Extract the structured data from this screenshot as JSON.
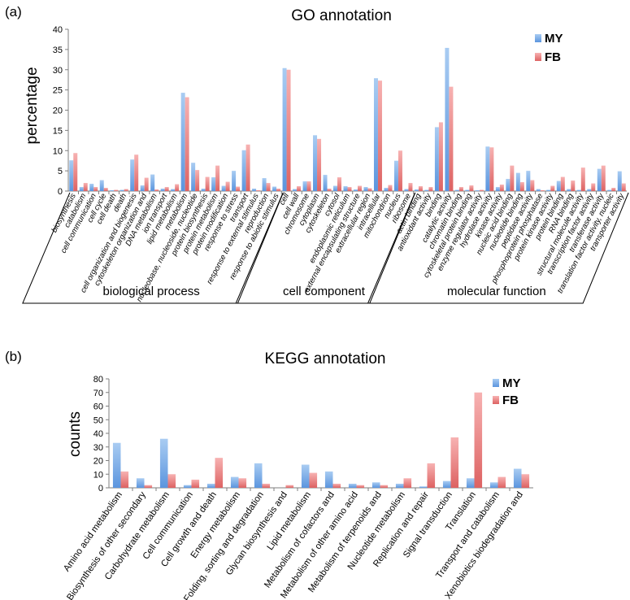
{
  "colors": {
    "MY_top": "#a9ccf2",
    "MY_bottom": "#5b95de",
    "FB_top": "#f7b2b2",
    "FB_bottom": "#dd6262",
    "axis": "#7f7f7f"
  },
  "chart_data": [
    {
      "type": "bar",
      "panel_label": "(a)",
      "title": "GO annotation",
      "xlabel": "",
      "ylabel": "percentage",
      "ylim": [
        0,
        40
      ],
      "yticks": [
        "0",
        "5",
        "10",
        "15",
        "20",
        "25",
        "30",
        "35",
        "40"
      ],
      "grid": false,
      "legend_position": "top-right",
      "categories": [
        "biosynthesis",
        "catabolism",
        "cell communication",
        "cell cycle",
        "cell death",
        "death",
        "cell organization and biogenesis",
        "cytoskeleton organization and",
        "DNA metabolism",
        "ion transport",
        "lipid metabolism",
        "metabolism",
        "nucleobase, nucleoside, nucleotide",
        "protein biosynthesis",
        "protein metabolism",
        "protein modification",
        "response to stress",
        "transport",
        "response to external stimulus",
        "reproduction",
        "response to abiotic stimulus",
        "cell",
        "cell wall",
        "chromosome",
        "cytoplasm",
        "cytoskeleton",
        "cytosol",
        "endoplasmic reticulum",
        "external encapsulating structure",
        "extracellular region",
        "intracellular",
        "mitochondrion",
        "nucleus",
        "ribosome",
        "actin binding",
        "antioxidant activity",
        "binding",
        "catalytic activity",
        "chromatin binding",
        "cytoskeletal protein binding",
        "enzyme regulator activity",
        "hydrolase activity",
        "kinase activity",
        "nucleic acid binding",
        "nucleotide binding",
        "peptidase activity",
        "phosphoprotein phosphatase",
        "protein kinase activity",
        "protein binding",
        "RNA binding",
        "structural molecule activity",
        "transcription factor activity",
        "transferase activity",
        "translation factor activity, nucleic",
        "transporter activity"
      ],
      "series": [
        {
          "name": "MY",
          "values": [
            7.6,
            1.0,
            1.8,
            2.7,
            0.2,
            0.3,
            7.8,
            1.4,
            4.1,
            0.6,
            0.5,
            24.3,
            7.0,
            0.6,
            3.4,
            1.3,
            5.0,
            10.1,
            0.6,
            3.2,
            1.1,
            30.4,
            0.5,
            2.4,
            13.8,
            4.0,
            1.3,
            1.2,
            0.4,
            1.0,
            27.9,
            0.8,
            7.5,
            0.5,
            0.4,
            0.3,
            15.8,
            35.4,
            0.3,
            0.3,
            0.2,
            11.0,
            1.0,
            3.0,
            4.5,
            5.0,
            0.5,
            0.3,
            2.5,
            0.5,
            0.3,
            0.5,
            5.5,
            0.3,
            4.9
          ]
        },
        {
          "name": "FB",
          "values": [
            9.4,
            2.0,
            1.0,
            0.8,
            0.3,
            0.5,
            9.0,
            3.3,
            0.4,
            1.0,
            1.7,
            23.2,
            5.2,
            3.5,
            6.3,
            2.3,
            1.1,
            11.5,
            0.2,
            2.0,
            0.6,
            30.0,
            1.2,
            2.4,
            12.9,
            0.6,
            3.4,
            1.0,
            1.3,
            0.7,
            27.3,
            1.5,
            10.0,
            2.0,
            1.2,
            1.0,
            17.0,
            25.8,
            1.0,
            1.4,
            0.3,
            10.8,
            1.6,
            6.3,
            2.2,
            2.7,
            0.2,
            1.3,
            3.5,
            2.6,
            5.8,
            1.9,
            6.3,
            0.8,
            1.9
          ]
        }
      ],
      "groups": [
        {
          "label": "biological process",
          "from": 0,
          "to": 20
        },
        {
          "label": "cell component",
          "from": 21,
          "to": 33
        },
        {
          "label": "molecular function",
          "from": 34,
          "to": 54
        }
      ]
    },
    {
      "type": "bar",
      "panel_label": "(b)",
      "title": "KEGG annotation",
      "xlabel": "",
      "ylabel": "counts",
      "ylim": [
        0,
        80
      ],
      "yticks": [
        "0",
        "10",
        "20",
        "30",
        "40",
        "50",
        "60",
        "70",
        "80"
      ],
      "grid": false,
      "legend_position": "top-right",
      "categories": [
        "Amino acid metabolism",
        "Biosynthesis of other secondary",
        "Carbohydrate metabolism",
        "Cell communication",
        "Cell growth and death",
        "Energy metabolism",
        "Folding, sorting and degradation",
        "Glycan biosynthesis and",
        "Lipid metabolism",
        "Metabolism of cofactors and",
        "Metabolism of other amino acid",
        "Metabolism of terpenoids and",
        "Nucleotide metabolism",
        "Replication and repair",
        "Signal transduction",
        "Translation",
        "Transport and catabolism",
        "Xenobiotics biodegradation and"
      ],
      "series": [
        {
          "name": "MY",
          "values": [
            33,
            7,
            36,
            2,
            3,
            8,
            18,
            0,
            17,
            12,
            3,
            4,
            3,
            1,
            5,
            7,
            4,
            14
          ]
        },
        {
          "name": "FB",
          "values": [
            12,
            2,
            10,
            6,
            22,
            7,
            3,
            2,
            11,
            3,
            2,
            2,
            7,
            18,
            37,
            70,
            8,
            10
          ]
        }
      ]
    }
  ]
}
